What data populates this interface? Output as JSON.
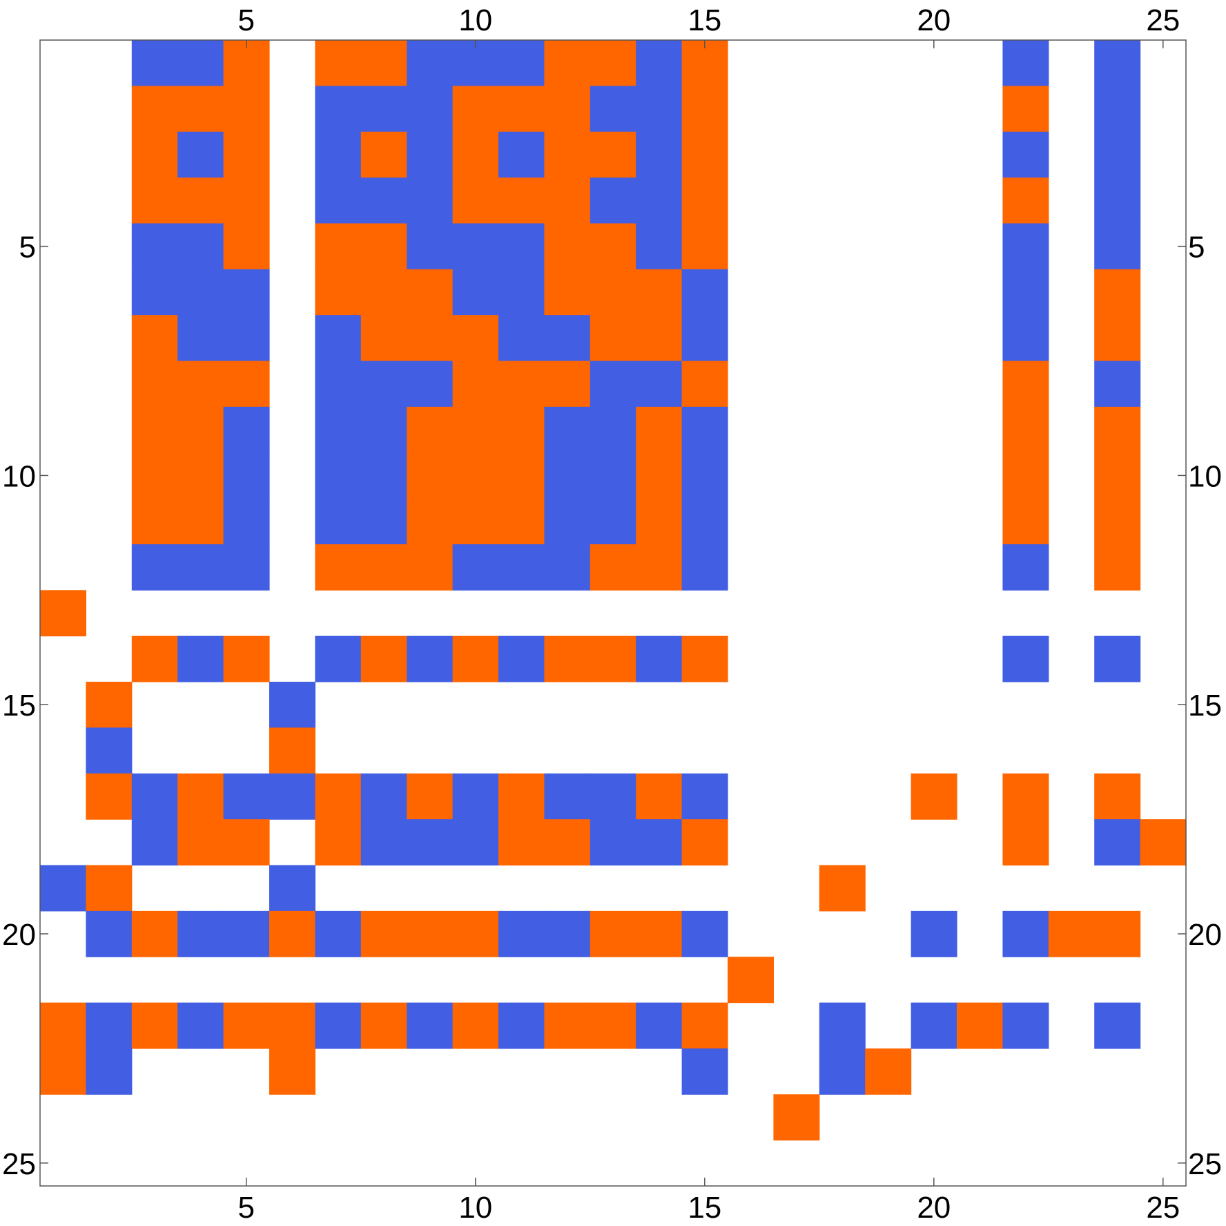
{
  "chart_data": {
    "type": "heatmap",
    "title": "",
    "xlabel": "",
    "ylabel": "",
    "rows": 25,
    "cols": 25,
    "xlim": [
      0.5,
      25.5
    ],
    "ylim": [
      0.5,
      25.5
    ],
    "y_axis_direction": "top-to-bottom",
    "x_ticks": [
      "5",
      "10",
      "15",
      "20",
      "25"
    ],
    "y_ticks": [
      "5",
      "10",
      "15",
      "20",
      "25"
    ],
    "tick_values": [
      5,
      10,
      15,
      20,
      25
    ],
    "colors": {
      "1": "#ff6600",
      "-1": "#425ee3",
      "0": "#ffffff"
    },
    "legend": "none",
    "grid": false,
    "matrix": [
      "..BBO.OOBBBOOBO......B.B.",
      "..OOO.BBBOOOBBO......O.B.",
      "..OBO.BOBOBOOBO......B.B.",
      "..OOO.BBBOOOBBO......O.B.",
      "..BBO.OOBBBOOBO......B.B.",
      "..BBB.OOOBBOOOB......B.O.",
      "..OBB.BOOOBBOOB......B.O.",
      "..OOO.BBBOOOBBO......O.B.",
      "..OOB.BBOOOBBOB......O.O.",
      "..OOB.BBOOOBBOB......O.O.",
      "..OOB.BBOOOBBOB......O.O.",
      "..BBB.OOOBBBOOB......B.O.",
      "O........................",
      "..OBO.BOBOBOOBO......B.B.",
      ".O...B...................",
      ".B...O...................",
      ".OBOBBOBOBOBBOB....O.O.O.",
      "..BOO.OBBBOOBBO......O.BO",
      "BO...B...........O.......",
      ".BOBBOBOOOBBOOB....B.BOO.",
      "...............O.........",
      "OBOBOOBOBOBOOBO..B.BOB.B.",
      "OB...O........B..BO......",
      "................O........",
      "........................."
    ]
  }
}
